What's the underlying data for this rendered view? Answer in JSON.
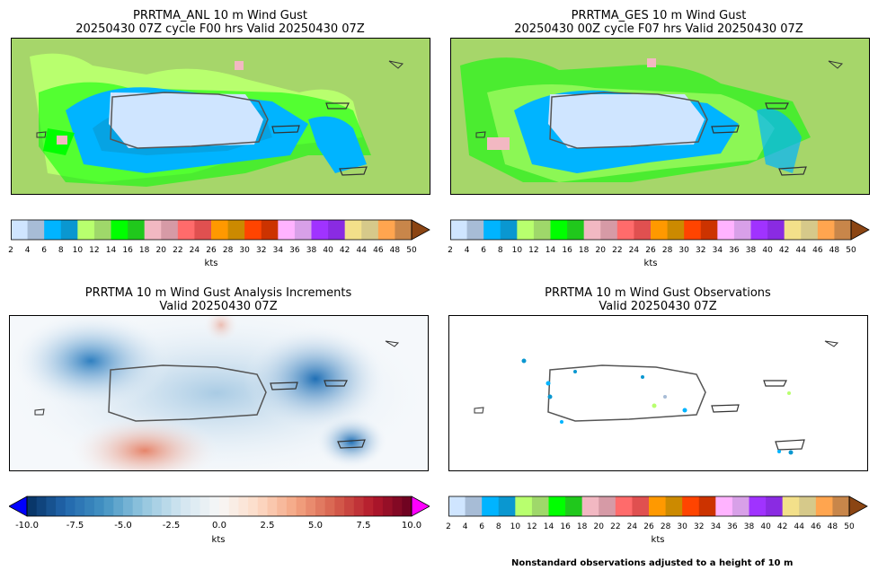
{
  "panels": {
    "anl": {
      "title1": "PRRTMA_ANL 10 m Wind Gust",
      "title2": "20250430 07Z cycle F00 hrs Valid 20250430 07Z"
    },
    "ges": {
      "title1": "PRRTMA_GES 10 m Wind Gust",
      "title2": "20250430 00Z cycle F07 hrs Valid 20250430 07Z"
    },
    "inc": {
      "title1": "PRRTMA 10 m Wind Gust Analysis Increments",
      "title2": "Valid 20250430 07Z"
    },
    "obs": {
      "title1": "PRRTMA 10 m Wind Gust Observations",
      "title2": "Valid 20250430 07Z"
    }
  },
  "colorbar_units": "kts",
  "gust_ticks": [
    "2",
    "4",
    "6",
    "8",
    "10",
    "12",
    "14",
    "16",
    "18",
    "20",
    "22",
    "24",
    "26",
    "28",
    "30",
    "32",
    "34",
    "36",
    "38",
    "40",
    "42",
    "44",
    "46",
    "48",
    "50"
  ],
  "gust_colors": [
    "#cfe5ff",
    "#a7bcd6",
    "#00b4ff",
    "#0a97d0",
    "#b8ff6e",
    "#9fd86a",
    "#00ff00",
    "#20c81c",
    "#f2b8c2",
    "#d69aa6",
    "#ff6b6b",
    "#e05050",
    "#ff9900",
    "#cc8a00",
    "#ff4400",
    "#cc3300",
    "#ffb3ff",
    "#d8a0e8",
    "#a033ff",
    "#8a2be2",
    "#f3e08a",
    "#d6c98a",
    "#ffa54f",
    "#c8864a"
  ],
  "gust_extend_color": "#8b4513",
  "inc_ticks": [
    "-10.0",
    "-7.5",
    "-5.0",
    "-2.5",
    "0.0",
    "2.5",
    "5.0",
    "7.5",
    "10.0"
  ],
  "inc_extend_low": "#0000ff",
  "inc_extend_high": "#ff00ff",
  "note": "Nonstandard observations adjusted to a height of 10 m"
}
